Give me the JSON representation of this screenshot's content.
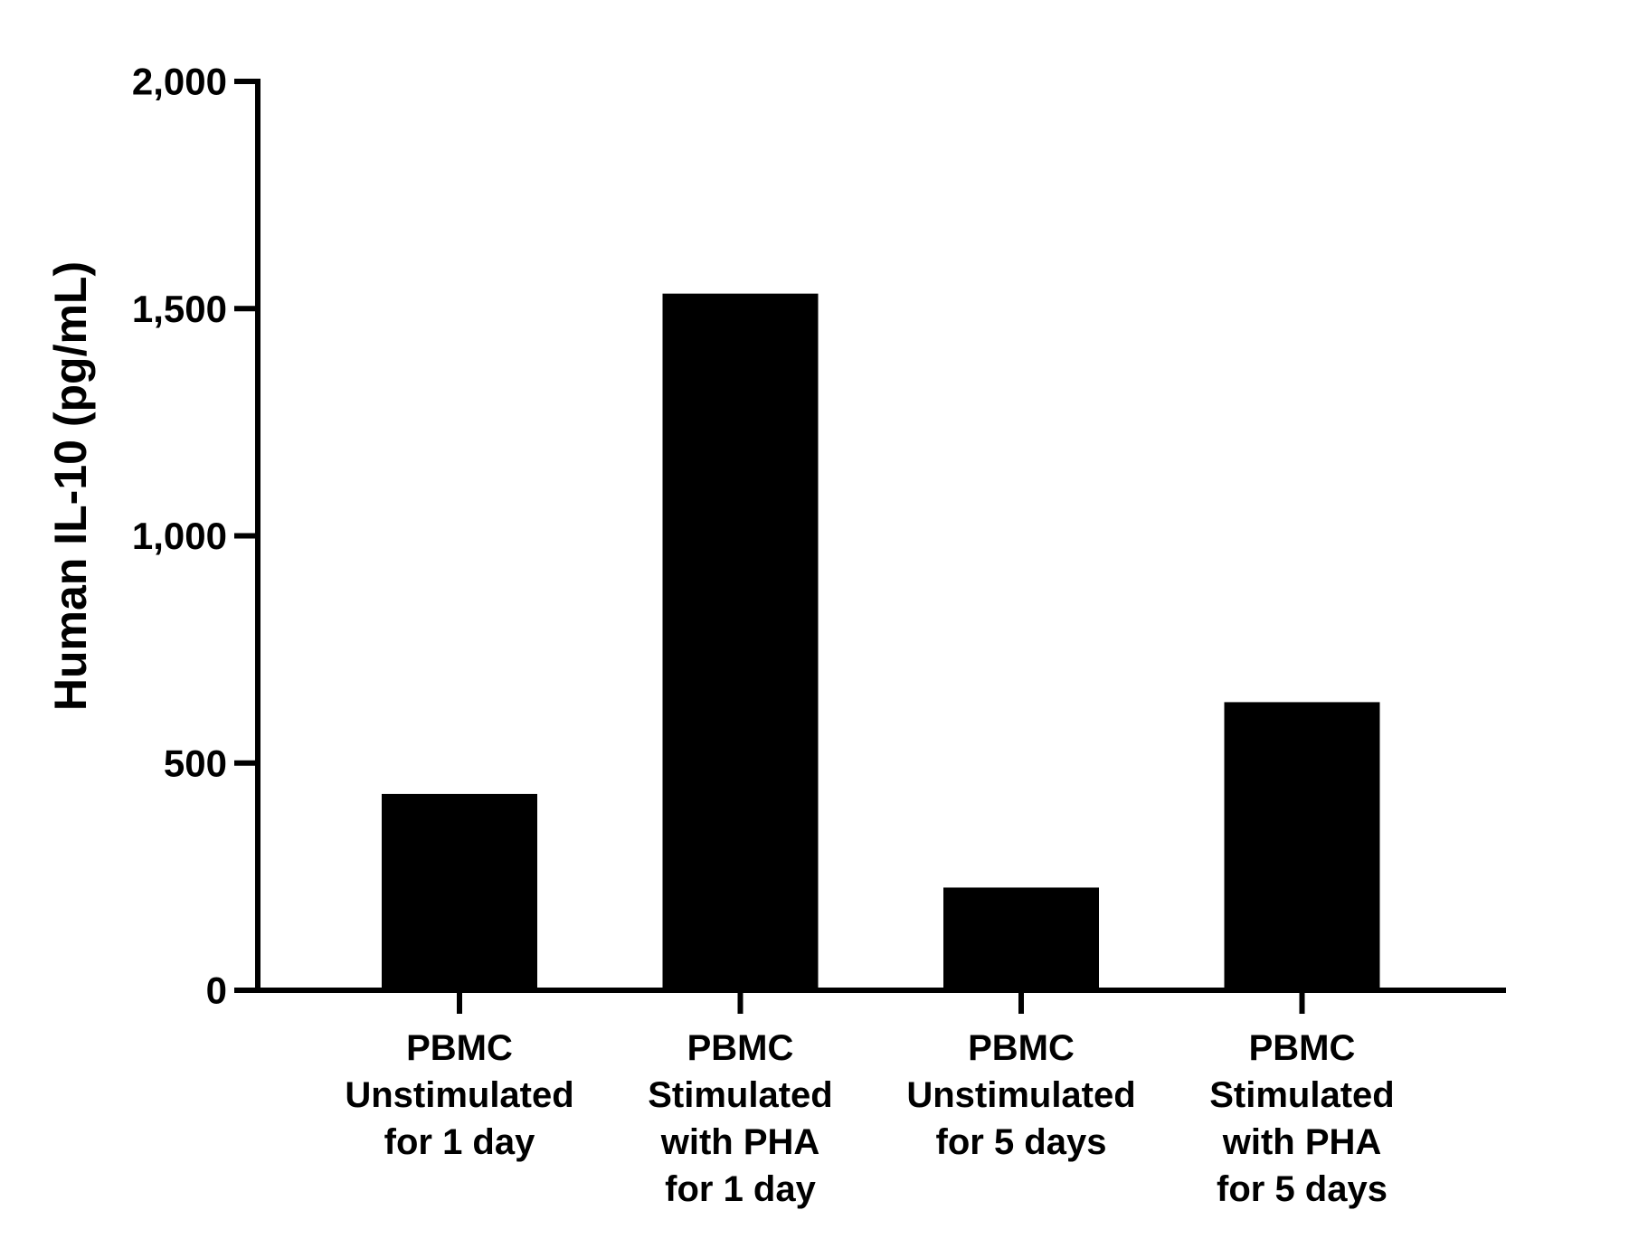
{
  "chart_data": {
    "type": "bar",
    "categories": [
      [
        "PBMC",
        "Unstimulated",
        "for 1 day"
      ],
      [
        "PBMC",
        "Stimulated",
        "with PHA",
        "for 1 day"
      ],
      [
        "PBMC",
        "Unstimulated",
        "for 5 days"
      ],
      [
        "PBMC",
        "Stimulated",
        "with PHA",
        "for 5 days"
      ]
    ],
    "values": [
      432,
      1533,
      226,
      634
    ],
    "title": "",
    "xlabel": "",
    "ylabel": "Human IL-10 (pg/mL)",
    "ylim": [
      0,
      2000
    ],
    "yticks": [
      0,
      500,
      1000,
      1500,
      2000
    ],
    "ytick_labels": [
      "0",
      "500",
      "1,000",
      "1,500",
      "2,000"
    ],
    "grid": false,
    "legend": "none",
    "colors": {
      "bar": "#000000",
      "axis": "#000000",
      "background": "#ffffff"
    }
  }
}
